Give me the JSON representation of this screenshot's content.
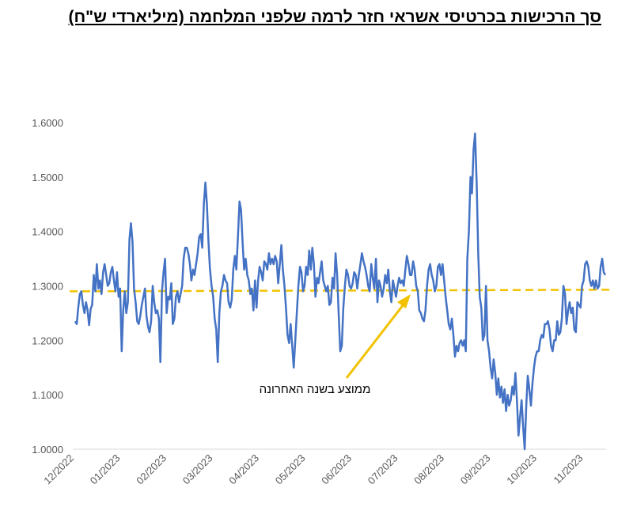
{
  "chart_data": {
    "type": "line",
    "title": "סך הרכישות בכרטיסי אשראי חזר לרמה שלפני המלחמה (מיליארדי ש\"ח)",
    "xlabel": "",
    "ylabel": "",
    "ylim": [
      1.0,
      1.6
    ],
    "y_ticks": [
      "1.0000",
      "1.1000",
      "1.2000",
      "1.3000",
      "1.4000",
      "1.5000",
      "1.6000"
    ],
    "x_ticks": [
      "12/2022",
      "01/2023",
      "02/2023",
      "03/2023",
      "04/2023",
      "05/2023",
      "06/2023",
      "07/2023",
      "08/2023",
      "09/2023",
      "10/2023",
      "11/2023"
    ],
    "series": [
      {
        "name": "סך הרכישות",
        "color": "#4472C4",
        "values": [
          1.235,
          1.23,
          1.26,
          1.285,
          1.29,
          1.265,
          1.25,
          1.27,
          1.255,
          1.228,
          1.258,
          1.265,
          1.32,
          1.29,
          1.34,
          1.295,
          1.31,
          1.285,
          1.325,
          1.34,
          1.32,
          1.3,
          1.305,
          1.325,
          1.335,
          1.31,
          1.29,
          1.325,
          1.28,
          1.295,
          1.18,
          1.255,
          1.29,
          1.25,
          1.27,
          1.385,
          1.415,
          1.38,
          1.295,
          1.27,
          1.235,
          1.23,
          1.245,
          1.265,
          1.28,
          1.295,
          1.245,
          1.225,
          1.215,
          1.235,
          1.3,
          1.27,
          1.25,
          1.255,
          1.24,
          1.16,
          1.29,
          1.325,
          1.35,
          1.25,
          1.28,
          1.275,
          1.305,
          1.23,
          1.24,
          1.28,
          1.29,
          1.27,
          1.285,
          1.3,
          1.35,
          1.37,
          1.37,
          1.36,
          1.34,
          1.31,
          1.33,
          1.32,
          1.34,
          1.36,
          1.39,
          1.395,
          1.37,
          1.45,
          1.49,
          1.45,
          1.38,
          1.33,
          1.3,
          1.28,
          1.24,
          1.22,
          1.16,
          1.25,
          1.29,
          1.3,
          1.32,
          1.31,
          1.305,
          1.27,
          1.26,
          1.275,
          1.33,
          1.355,
          1.33,
          1.39,
          1.455,
          1.44,
          1.38,
          1.33,
          1.35,
          1.32,
          1.31,
          1.285,
          1.295,
          1.255,
          1.31,
          1.26,
          1.31,
          1.335,
          1.325,
          1.31,
          1.345,
          1.34,
          1.33,
          1.36,
          1.34,
          1.35,
          1.34,
          1.355,
          1.345,
          1.305,
          1.34,
          1.375,
          1.33,
          1.3,
          1.26,
          1.21,
          1.195,
          1.23,
          1.19,
          1.15,
          1.2,
          1.25,
          1.3,
          1.335,
          1.325,
          1.29,
          1.3,
          1.335,
          1.32,
          1.365,
          1.33,
          1.37,
          1.34,
          1.28,
          1.315,
          1.305,
          1.325,
          1.345,
          1.31,
          1.3,
          1.29,
          1.3,
          1.265,
          1.27,
          1.315,
          1.295,
          1.36,
          1.32,
          1.25,
          1.18,
          1.19,
          1.26,
          1.3,
          1.33,
          1.32,
          1.3,
          1.295,
          1.305,
          1.325,
          1.32,
          1.295,
          1.32,
          1.34,
          1.36,
          1.345,
          1.335,
          1.32,
          1.3,
          1.29,
          1.34,
          1.315,
          1.295,
          1.35,
          1.27,
          1.31,
          1.3,
          1.28,
          1.295,
          1.32,
          1.305,
          1.33,
          1.29,
          1.27,
          1.31,
          1.295,
          1.28,
          1.3,
          1.315,
          1.305,
          1.31,
          1.3,
          1.33,
          1.355,
          1.34,
          1.32,
          1.32,
          1.345,
          1.33,
          1.3,
          1.29,
          1.255,
          1.25,
          1.24,
          1.235,
          1.255,
          1.3,
          1.33,
          1.34,
          1.32,
          1.31,
          1.29,
          1.3,
          1.335,
          1.34,
          1.32,
          1.34,
          1.31,
          1.28,
          1.255,
          1.23,
          1.22,
          1.24,
          1.21,
          1.17,
          1.19,
          1.18,
          1.195,
          1.2,
          1.19,
          1.2,
          1.18,
          1.35,
          1.4,
          1.5,
          1.47,
          1.55,
          1.58,
          1.49,
          1.36,
          1.28,
          1.26,
          1.2,
          1.21,
          1.3,
          1.2,
          1.18,
          1.15,
          1.13,
          1.165,
          1.14,
          1.1,
          1.13,
          1.095,
          1.115,
          1.085,
          1.11,
          1.07,
          1.1,
          1.08,
          1.09,
          1.115,
          1.1,
          1.14,
          1.09,
          1.025,
          1.06,
          1.09,
          1.04,
          1.0,
          1.08,
          1.135,
          1.11,
          1.08,
          1.12,
          1.15,
          1.17,
          1.18,
          1.18,
          1.2,
          1.21,
          1.205,
          1.23,
          1.23,
          1.235,
          1.22,
          1.19,
          1.18,
          1.2,
          1.2,
          1.235,
          1.21,
          1.215,
          1.24,
          1.3,
          1.285,
          1.23,
          1.255,
          1.27,
          1.25,
          1.26,
          1.22,
          1.215,
          1.27,
          1.265,
          1.26,
          1.3,
          1.31,
          1.34,
          1.345,
          1.335,
          1.31,
          1.3,
          1.31,
          1.295,
          1.31,
          1.295,
          1.3,
          1.335,
          1.35,
          1.325,
          1.32
        ]
      }
    ],
    "reference_line": {
      "name": "ממוצע בשנה האחרונה",
      "value": 1.29,
      "color": "#F2C200"
    },
    "annotation": {
      "text": "ממוצע בשנה האחרונה"
    }
  }
}
